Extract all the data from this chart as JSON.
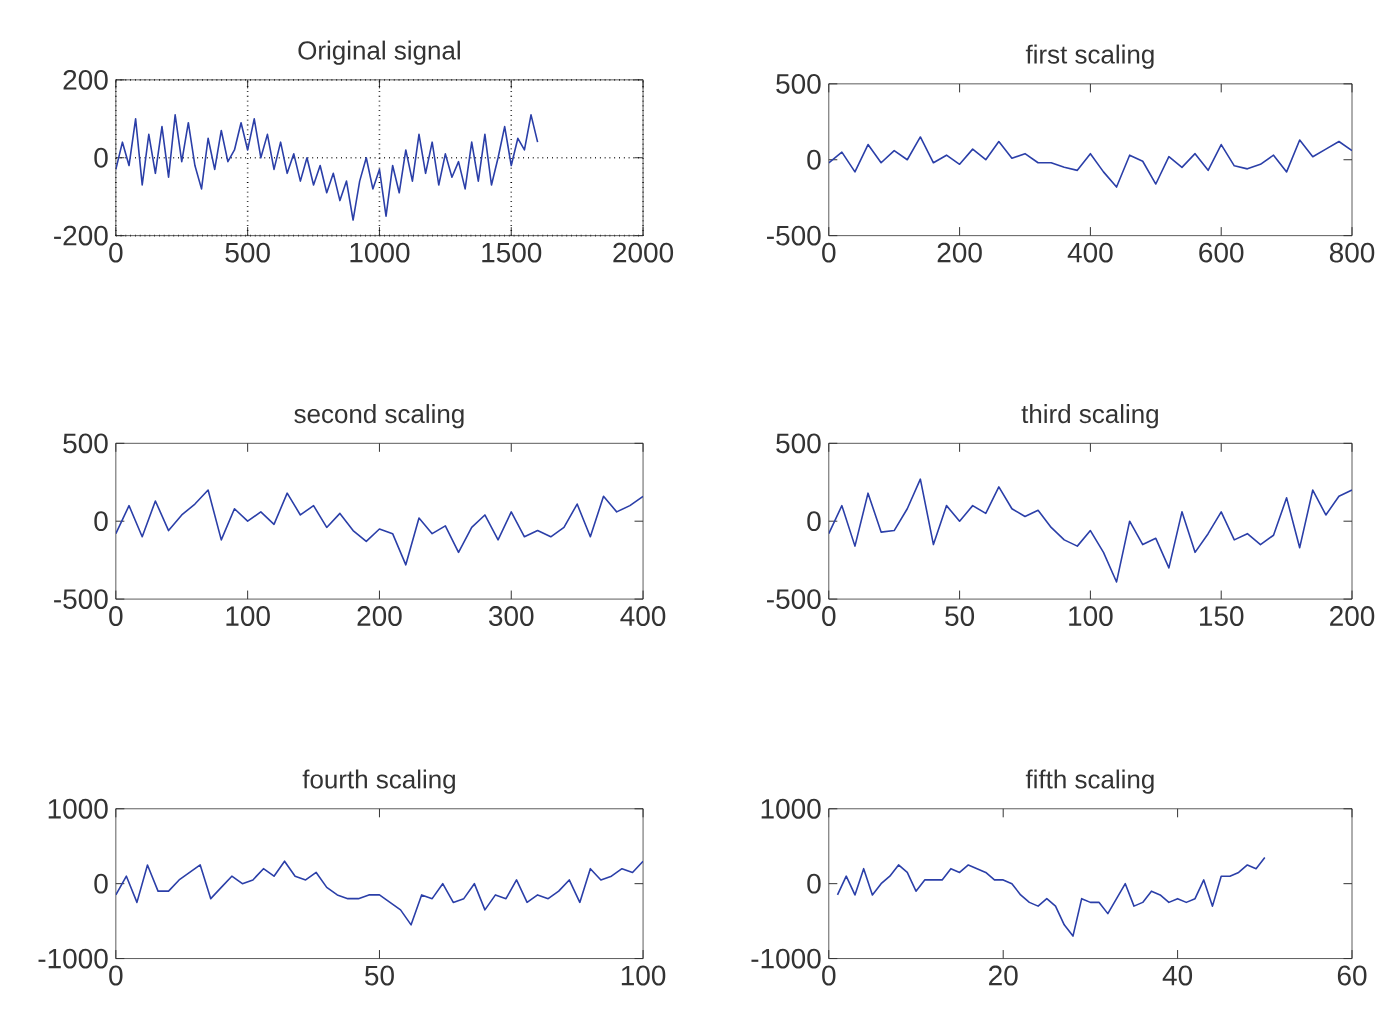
{
  "chart_data": [
    {
      "type": "line",
      "title": "Original signal",
      "grid": true,
      "xlim": [
        0,
        2000
      ],
      "ylim": [
        -200,
        200
      ],
      "xticks": [
        0,
        500,
        1000,
        1500,
        2000
      ],
      "yticks": [
        -200,
        0,
        200
      ],
      "series": [
        {
          "color": "#2b3fa8",
          "x": [
            0,
            25,
            50,
            75,
            100,
            125,
            150,
            175,
            200,
            225,
            250,
            275,
            300,
            325,
            350,
            375,
            400,
            425,
            450,
            475,
            500,
            525,
            550,
            575,
            600,
            625,
            650,
            675,
            700,
            725,
            750,
            775,
            800,
            825,
            850,
            875,
            900,
            925,
            950,
            975,
            1000,
            1025,
            1050,
            1075,
            1100,
            1125,
            1150,
            1175,
            1200,
            1225,
            1250,
            1275,
            1300,
            1325,
            1350,
            1375,
            1400,
            1425,
            1450,
            1475,
            1500,
            1525,
            1550,
            1575,
            1600
          ],
          "values": [
            -30,
            40,
            -20,
            100,
            -70,
            60,
            -40,
            80,
            -50,
            110,
            -10,
            90,
            -20,
            -80,
            50,
            -30,
            70,
            -10,
            20,
            90,
            20,
            100,
            0,
            60,
            -30,
            40,
            -40,
            10,
            -60,
            0,
            -70,
            -20,
            -90,
            -40,
            -110,
            -60,
            -160,
            -60,
            0,
            -80,
            -30,
            -150,
            -20,
            -90,
            20,
            -60,
            60,
            -40,
            40,
            -70,
            10,
            -50,
            -10,
            -80,
            40,
            -60,
            60,
            -70,
            0,
            80,
            -20,
            50,
            20,
            110,
            40
          ]
        }
      ]
    },
    {
      "type": "line",
      "title": "first scaling",
      "xlim": [
        0,
        800
      ],
      "ylim": [
        -500,
        500
      ],
      "xticks": [
        0,
        200,
        400,
        600,
        800
      ],
      "yticks": [
        -500,
        0,
        500
      ],
      "series": [
        {
          "color": "#2b3fa8",
          "x": [
            0,
            20,
            40,
            60,
            80,
            100,
            120,
            140,
            160,
            180,
            200,
            220,
            240,
            260,
            280,
            300,
            320,
            340,
            360,
            380,
            400,
            420,
            440,
            460,
            480,
            500,
            520,
            540,
            560,
            580,
            600,
            620,
            640,
            660,
            680,
            700,
            720,
            740,
            760,
            780,
            800
          ],
          "values": [
            -20,
            50,
            -80,
            100,
            -20,
            60,
            0,
            150,
            -20,
            30,
            -30,
            70,
            0,
            120,
            10,
            40,
            -20,
            -20,
            -50,
            -70,
            40,
            -80,
            -180,
            30,
            -10,
            -160,
            20,
            -50,
            40,
            -70,
            100,
            -40,
            -60,
            -30,
            30,
            -80,
            130,
            20,
            70,
            120,
            60
          ]
        }
      ]
    },
    {
      "type": "line",
      "title": "second scaling",
      "xlim": [
        0,
        400
      ],
      "ylim": [
        -500,
        500
      ],
      "xticks": [
        0,
        100,
        200,
        300,
        400
      ],
      "yticks": [
        -500,
        0,
        500
      ],
      "series": [
        {
          "color": "#2b3fa8",
          "x": [
            0,
            10,
            20,
            30,
            40,
            50,
            60,
            70,
            80,
            90,
            100,
            110,
            120,
            130,
            140,
            150,
            160,
            170,
            180,
            190,
            200,
            210,
            220,
            230,
            240,
            250,
            260,
            270,
            280,
            290,
            300,
            310,
            320,
            330,
            340,
            350,
            360,
            370,
            380,
            390,
            400
          ],
          "values": [
            -80,
            100,
            -100,
            130,
            -60,
            40,
            110,
            200,
            -120,
            80,
            0,
            60,
            -20,
            180,
            40,
            100,
            -40,
            50,
            -60,
            -130,
            -50,
            -80,
            -280,
            20,
            -80,
            -30,
            -200,
            -40,
            40,
            -120,
            60,
            -100,
            -60,
            -100,
            -40,
            110,
            -100,
            160,
            60,
            100,
            160
          ]
        }
      ]
    },
    {
      "type": "line",
      "title": "third scaling",
      "xlim": [
        0,
        200
      ],
      "ylim": [
        -500,
        500
      ],
      "xticks": [
        0,
        50,
        100,
        150,
        200
      ],
      "yticks": [
        -500,
        0,
        500
      ],
      "series": [
        {
          "color": "#2b3fa8",
          "x": [
            0,
            5,
            10,
            15,
            20,
            25,
            30,
            35,
            40,
            45,
            50,
            55,
            60,
            65,
            70,
            75,
            80,
            85,
            90,
            95,
            100,
            105,
            110,
            115,
            120,
            125,
            130,
            135,
            140,
            145,
            150,
            155,
            160,
            165,
            170,
            175,
            180,
            185,
            190,
            195,
            200
          ],
          "values": [
            -80,
            100,
            -160,
            180,
            -70,
            -60,
            80,
            270,
            -150,
            100,
            0,
            100,
            50,
            220,
            80,
            30,
            70,
            -40,
            -120,
            -160,
            -60,
            -200,
            -390,
            0,
            -150,
            -110,
            -300,
            60,
            -200,
            -80,
            60,
            -120,
            -80,
            -150,
            -90,
            150,
            -170,
            200,
            40,
            160,
            200
          ]
        }
      ]
    },
    {
      "type": "line",
      "title": "fourth scaling",
      "xlim": [
        0,
        100
      ],
      "ylim": [
        -1000,
        1000
      ],
      "xticks": [
        0,
        50,
        100
      ],
      "yticks": [
        -1000,
        0,
        1000
      ],
      "series": [
        {
          "color": "#2b3fa8",
          "x": [
            0,
            2,
            4,
            6,
            8,
            10,
            12,
            14,
            16,
            18,
            20,
            22,
            24,
            26,
            28,
            30,
            32,
            34,
            36,
            38,
            40,
            42,
            44,
            46,
            48,
            50,
            52,
            54,
            56,
            58,
            60,
            62,
            64,
            66,
            68,
            70,
            72,
            74,
            76,
            78,
            80,
            82,
            84,
            86,
            88,
            90,
            92,
            94,
            96,
            98,
            100
          ],
          "values": [
            -150,
            100,
            -250,
            250,
            -100,
            -100,
            50,
            150,
            250,
            -200,
            -50,
            100,
            0,
            50,
            200,
            100,
            300,
            100,
            50,
            150,
            -50,
            -150,
            -200,
            -200,
            -150,
            -150,
            -250,
            -350,
            -550,
            -150,
            -200,
            0,
            -250,
            -200,
            0,
            -350,
            -150,
            -200,
            50,
            -250,
            -150,
            -200,
            -100,
            50,
            -250,
            200,
            50,
            100,
            200,
            150,
            300
          ]
        }
      ]
    },
    {
      "type": "line",
      "title": "fifth scaling",
      "xlim": [
        0,
        60
      ],
      "ylim": [
        -1000,
        1000
      ],
      "xticks": [
        0,
        20,
        40,
        60
      ],
      "yticks": [
        -1000,
        0,
        1000
      ],
      "series": [
        {
          "color": "#2b3fa8",
          "x": [
            1,
            2,
            3,
            4,
            5,
            6,
            7,
            8,
            9,
            10,
            11,
            12,
            13,
            14,
            15,
            16,
            17,
            18,
            19,
            20,
            21,
            22,
            23,
            24,
            25,
            26,
            27,
            28,
            29,
            30,
            31,
            32,
            33,
            34,
            35,
            36,
            37,
            38,
            39,
            40,
            41,
            42,
            43,
            44,
            45,
            46,
            47,
            48,
            49,
            50
          ],
          "values": [
            -150,
            100,
            -150,
            200,
            -150,
            0,
            100,
            250,
            150,
            -100,
            50,
            50,
            50,
            200,
            150,
            250,
            200,
            150,
            50,
            50,
            0,
            -150,
            -250,
            -300,
            -200,
            -300,
            -550,
            -700,
            -200,
            -250,
            -250,
            -400,
            -200,
            0,
            -300,
            -250,
            -100,
            -150,
            -250,
            -200,
            -250,
            -200,
            50,
            -300,
            100,
            100,
            150,
            250,
            200,
            350
          ]
        }
      ]
    }
  ]
}
